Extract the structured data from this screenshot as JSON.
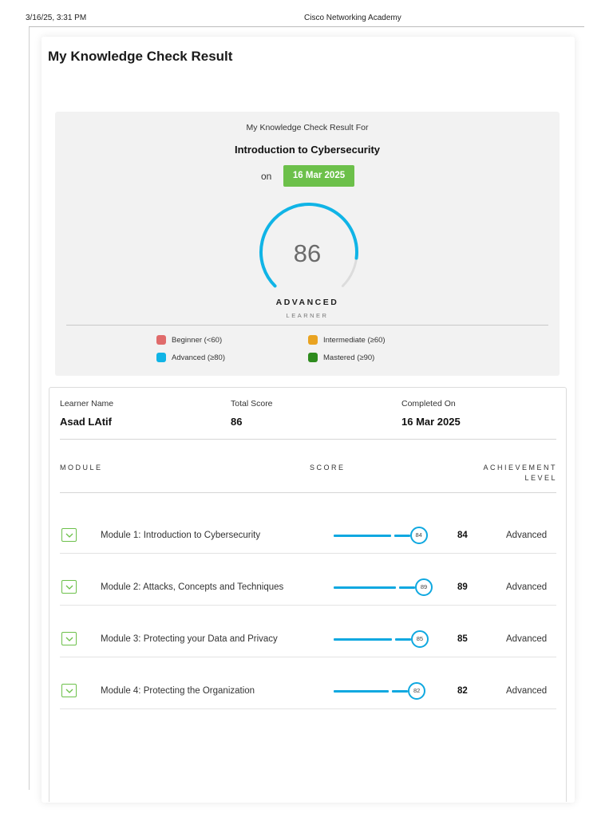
{
  "print_header": {
    "datetime": "3/16/25, 3:31 PM",
    "site_title": "Cisco Networking Academy"
  },
  "page": {
    "title": "My Knowledge Check Result"
  },
  "summary": {
    "result_for_label": "My Knowledge Check Result For",
    "course_name": "Introduction to Cybersecurity",
    "on_label": "on",
    "date": "16 Mar 2025",
    "score": "86",
    "score_fraction": 0.86,
    "level": "ADVANCED",
    "learner_label": "LEARNER",
    "gauge_color": "#10b4e6",
    "gauge_track_color": "#dcdcdc"
  },
  "legend": [
    {
      "label": "Beginner (<60)",
      "color": "#e06b6b"
    },
    {
      "label": "Intermediate (≥60)",
      "color": "#e9a321"
    },
    {
      "label": "Advanced (≥80)",
      "color": "#10b4e6"
    },
    {
      "label": "Mastered (≥90)",
      "color": "#2e8b1e"
    }
  ],
  "learner_info": {
    "name_label": "Learner Name",
    "name_value": "Asad LAtif",
    "score_label": "Total Score",
    "score_value": "86",
    "completed_label": "Completed On",
    "completed_value": "16 Mar 2025"
  },
  "table": {
    "columns": {
      "module": "MODULE",
      "score": "SCORE",
      "achievement_line1": "ACHIEVEMENT",
      "achievement_line2": "LEVEL"
    },
    "rows": [
      {
        "name": "Module 1: Introduction to Cybersecurity",
        "score": "84",
        "level": "Advanced",
        "fraction": 0.84
      },
      {
        "name": "Module 2: Attacks, Concepts and Techniques",
        "score": "89",
        "level": "Advanced",
        "fraction": 0.89
      },
      {
        "name": "Module 3: Protecting your Data and Privacy",
        "score": "85",
        "level": "Advanced",
        "fraction": 0.85
      },
      {
        "name": "Module 4: Protecting the Organization",
        "score": "82",
        "level": "Advanced",
        "fraction": 0.82
      }
    ]
  },
  "colors": {
    "accent_green": "#6cc04a",
    "accent_blue": "#0fa8e0"
  }
}
